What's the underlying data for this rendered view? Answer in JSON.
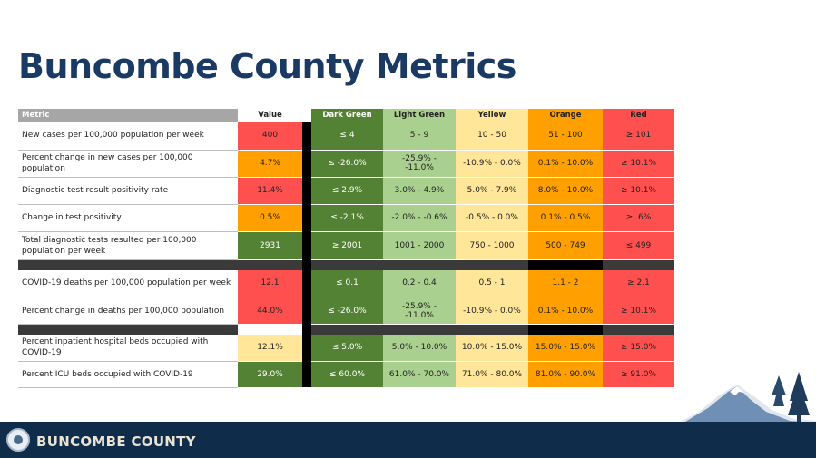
{
  "page": {
    "title": "Buncombe County Metrics"
  },
  "table": {
    "headers": {
      "metric": "Metric",
      "value": "Value",
      "dark_green": "Dark Green",
      "light_green": "Light Green",
      "yellow": "Yellow",
      "orange": "Orange",
      "red": "Red"
    },
    "rows": [
      {
        "metric": "New cases  per 100,000 population per week",
        "value": "400",
        "value_color": "red",
        "dark_green": "≤ 4",
        "light_green": "5 - 9",
        "yellow": "10 - 50",
        "orange": "51 - 100",
        "red": "≥ 101"
      },
      {
        "metric": "Percent change in new cases per 100,000 population",
        "value": "4.7%",
        "value_color": "orange",
        "dark_green": "≤ -26.0%",
        "light_green": "-25.9% - -11.0%",
        "yellow": "-10.9% - 0.0%",
        "orange": "0.1% - 10.0%",
        "red": "≥ 10.1%"
      },
      {
        "metric": "Diagnostic test result positivity rate",
        "value": "11.4%",
        "value_color": "red",
        "dark_green": "≤ 2.9%",
        "light_green": "3.0% - 4.9%",
        "yellow": "5.0% - 7.9%",
        "orange": "8.0% - 10.0%",
        "red": "≥ 10.1%"
      },
      {
        "metric": "Change in test positivity",
        "value": "0.5%",
        "value_color": "orange",
        "dark_green": "≤ -2.1%",
        "light_green": "-2.0% - -0.6%",
        "yellow": "-0.5% - 0.0%",
        "orange": "0.1% - 0.5%",
        "red": "≥ .6%"
      },
      {
        "metric": "Total diagnostic tests resulted per 100,000 population per week",
        "value": "2931",
        "value_color": "dark_green",
        "dark_green": "≥ 2001",
        "light_green": "1001 - 2000",
        "yellow": "750 - 1000",
        "orange": "500 - 749",
        "red": "≤ 499"
      },
      {
        "metric": "COVID-19 deaths per 100,000 population per week",
        "value": "12.1",
        "value_color": "red",
        "dark_green": "≤ 0.1",
        "light_green": "0.2 - 0.4",
        "yellow": "0.5 - 1",
        "orange": "1.1 - 2",
        "red": "≥ 2.1"
      },
      {
        "metric": "Percent change in deaths per 100,000 population",
        "value": "44.0%",
        "value_color": "red",
        "dark_green": "≤ -26.0%",
        "light_green": "-25.9% - -11.0%",
        "yellow": "-10.9% - 0.0%",
        "orange": "0.1% - 10.0%",
        "red": "≥ 10.1%"
      },
      {
        "metric": "Percent inpatient hospital beds occupied with COVID-19",
        "value": "12.1%",
        "value_color": "yellow",
        "dark_green": "≤ 5.0%",
        "light_green": "5.0% - 10.0%",
        "yellow": "10.0% - 15.0%",
        "orange": "15.0% - 15.0%",
        "red": "≥ 15.0%"
      },
      {
        "metric": "Percent ICU beds occupied with COVID-19",
        "value": "29.0%",
        "value_color": "dark_green",
        "dark_green": "≤ 60.0%",
        "light_green": "61.0% - 70.0%",
        "yellow": "71.0% - 80.0%",
        "orange": "81.0% - 90.0%",
        "red": "≥ 91.0%"
      }
    ]
  },
  "colors": {
    "title": "#1b3a63",
    "footer": "#0f2d4a",
    "dark_green": "#548235",
    "light_green": "#a9d08e",
    "yellow": "#ffe699",
    "orange": "#ffa000",
    "red": "#ff5050"
  },
  "footer": {
    "brand": "BUNCOMBE COUNTY",
    "logo": "county-seal-icon",
    "decoration": "mountain-trees-icon"
  }
}
